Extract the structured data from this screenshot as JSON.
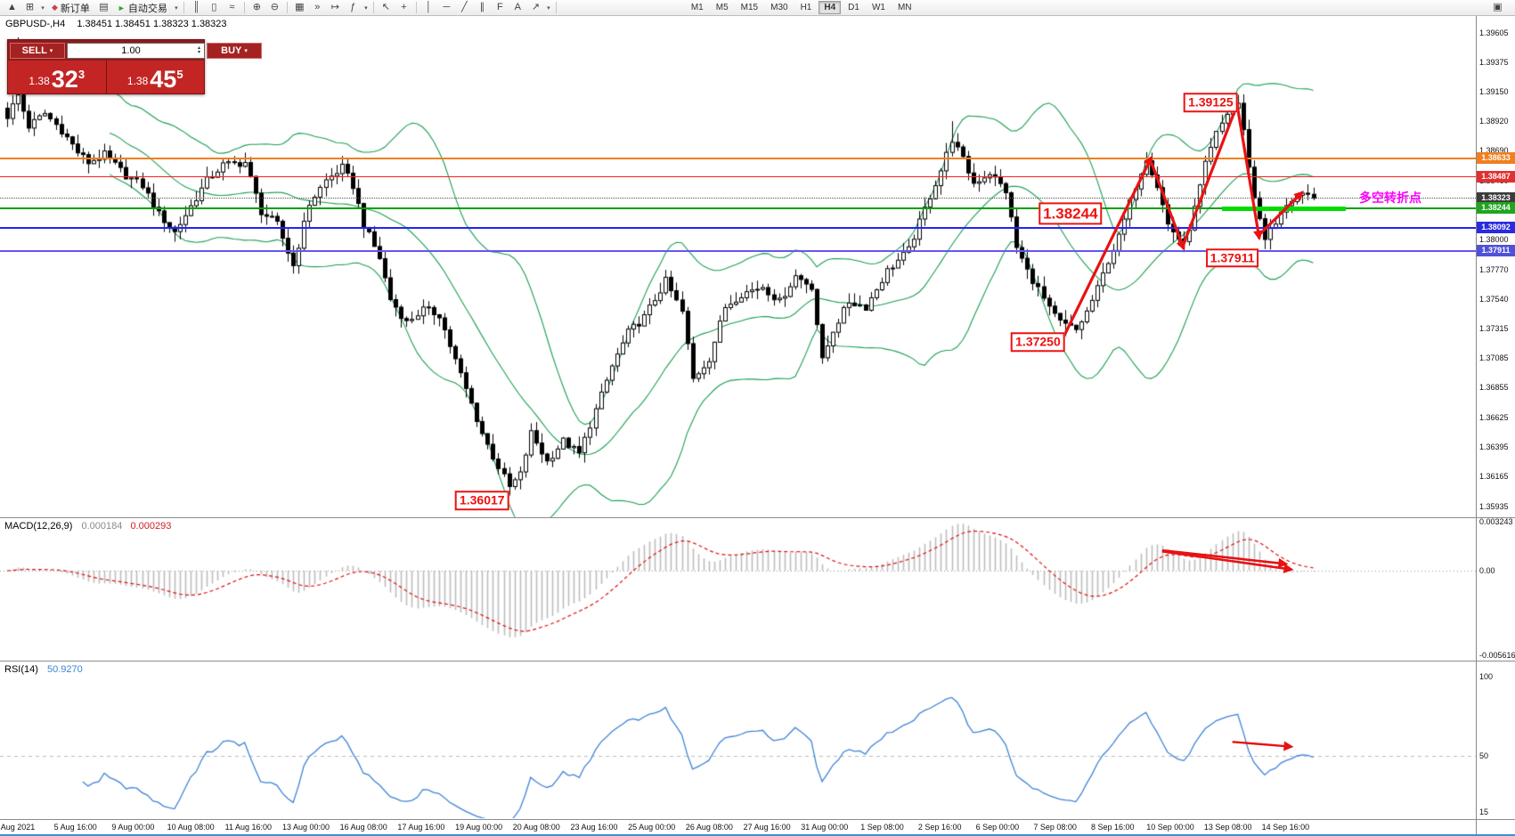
{
  "toolbar": {
    "items": [
      {
        "type": "icon",
        "name": "chart-menu-icon",
        "glyph": "▲"
      },
      {
        "type": "icon",
        "name": "new-chart-icon",
        "glyph": "⊞"
      },
      {
        "type": "caret",
        "name": "new-chart-caret-icon",
        "glyph": "▾"
      },
      {
        "type": "button",
        "name": "new-order-button",
        "icon_glyph": "◆",
        "icon_color": "#cc4444",
        "label": "新订单"
      },
      {
        "type": "icon",
        "name": "market-watch-icon",
        "glyph": "▤"
      },
      {
        "type": "button",
        "name": "auto-trading-button",
        "icon_glyph": "►",
        "icon_color": "#2da52d",
        "label": "自动交易"
      },
      {
        "type": "caret",
        "name": "auto-trading-caret-icon",
        "glyph": "▾"
      },
      {
        "type": "sep"
      },
      {
        "type": "icon",
        "name": "bar-chart-icon",
        "glyph": "║"
      },
      {
        "type": "icon",
        "name": "candle-chart-icon",
        "glyph": "▯"
      },
      {
        "type": "icon",
        "name": "line-chart-icon",
        "glyph": "≈"
      },
      {
        "type": "sep"
      },
      {
        "type": "icon",
        "name": "zoom-in-icon",
        "glyph": "⊕"
      },
      {
        "type": "icon",
        "name": "zoom-out-icon",
        "glyph": "⊖"
      },
      {
        "type": "sep"
      },
      {
        "type": "icon",
        "name": "tile-windows-icon",
        "glyph": "▦"
      },
      {
        "type": "icon",
        "name": "auto-scroll-icon",
        "glyph": "»"
      },
      {
        "type": "icon",
        "name": "chart-shift-icon",
        "glyph": "↦"
      },
      {
        "type": "icon",
        "name": "indicators-icon",
        "glyph": "ƒ"
      },
      {
        "type": "caret",
        "name": "indicators-caret-icon",
        "glyph": "▾"
      },
      {
        "type": "sep"
      },
      {
        "type": "icon",
        "name": "cursor-icon",
        "glyph": "↖"
      },
      {
        "type": "icon",
        "name": "crosshair-icon",
        "glyph": "+"
      },
      {
        "type": "sep"
      },
      {
        "type": "icon",
        "name": "vertical-line-icon",
        "glyph": "│"
      },
      {
        "type": "icon",
        "name": "horizontal-line-icon",
        "glyph": "─"
      },
      {
        "type": "icon",
        "name": "trendline-icon",
        "glyph": "╱"
      },
      {
        "type": "icon",
        "name": "channel-icon",
        "glyph": "∥"
      },
      {
        "type": "icon",
        "name": "fibonacci-icon",
        "glyph": "F"
      },
      {
        "type": "icon",
        "name": "text-tool-icon",
        "glyph": "A"
      },
      {
        "type": "icon",
        "name": "arrow-tool-icon",
        "glyph": "↗"
      },
      {
        "type": "caret",
        "name": "arrow-tool-caret-icon",
        "glyph": "▾"
      },
      {
        "type": "sep"
      }
    ],
    "timeframes": [
      "M1",
      "M5",
      "M15",
      "M30",
      "H1",
      "H4",
      "D1",
      "W1",
      "MN"
    ],
    "active_timeframe": "H4",
    "right_icon_glyph": "▣"
  },
  "chart_header": {
    "symbol_period": "GBPUSD-,H4",
    "ohlc": "1.38451 1.38451 1.38323 1.38323"
  },
  "trade_panel": {
    "sell_label": "SELL",
    "buy_label": "BUY",
    "volume": "1.00",
    "caret": "▾",
    "spin_up": "▴",
    "spin_down": "▾",
    "sell_price": {
      "prefix": "1.38",
      "big": "32",
      "sup": "3"
    },
    "buy_price": {
      "prefix": "1.38",
      "big": "45",
      "sup": "5"
    }
  },
  "indicator_labels": {
    "macd_name": "MACD(12,26,9)",
    "macd_value_main": "0.000184",
    "macd_value_signal": "0.000293",
    "rsi_name": "RSI(14)",
    "rsi_value": "50.9270"
  },
  "price_axis": {
    "ticks": [
      "1.39605",
      "1.39375",
      "1.39150",
      "1.38920",
      "1.38690",
      "1.38460",
      "1.38230",
      "1.38000",
      "1.37770",
      "1.37540",
      "1.37315",
      "1.37085",
      "1.36855",
      "1.36625",
      "1.36395",
      "1.36165",
      "1.35935"
    ],
    "tags": [
      {
        "value": "1.38633",
        "color": "#f07f1f",
        "price": 1.38633
      },
      {
        "value": "1.38487",
        "color": "#e03030",
        "price": 1.38487
      },
      {
        "value": "1.38323",
        "color": "#3c3c3c",
        "price": 1.38323
      },
      {
        "value": "1.38244",
        "color": "#1fa51f",
        "price": 1.38244
      },
      {
        "value": "1.38092",
        "color": "#2a2ae0",
        "price": 1.38092
      },
      {
        "value": "1.37911",
        "color": "#5050d8",
        "price": 1.37911
      }
    ]
  },
  "macd_axis": [
    {
      "text": "0.003243",
      "value": 0.003243
    },
    {
      "text": "0.00",
      "value": 0
    },
    {
      "text": "-0.005616",
      "value": -0.005616
    }
  ],
  "rsi_axis": [
    {
      "text": "100",
      "value": 100
    },
    {
      "text": "50",
      "value": 50
    },
    {
      "text": "15",
      "value": 15
    }
  ],
  "time_axis": [
    "Aug 2021",
    "5 Aug 16:00",
    "9 Aug 00:00",
    "10 Aug 08:00",
    "11 Aug 16:00",
    "13 Aug 00:00",
    "16 Aug 08:00",
    "17 Aug 16:00",
    "19 Aug 00:00",
    "20 Aug 08:00",
    "23 Aug 16:00",
    "25 Aug 00:00",
    "26 Aug 08:00",
    "27 Aug 16:00",
    "31 Aug 00:00",
    "1 Sep 08:00",
    "2 Sep 16:00",
    "6 Sep 00:00",
    "7 Sep 08:00",
    "8 Sep 16:00",
    "10 Sep 00:00",
    "13 Sep 08:00",
    "14 Sep 16:00"
  ],
  "annotations": {
    "boxes": [
      {
        "text": "1.39125",
        "bar": 223,
        "price": 1.39065,
        "size": "md"
      },
      {
        "text": "1.38244",
        "bar": 197,
        "price": 1.38205,
        "size": "lg"
      },
      {
        "text": "1.37911",
        "bar": 227,
        "price": 1.37858,
        "size": "md"
      },
      {
        "text": "1.37250",
        "bar": 191,
        "price": 1.37208,
        "size": "md"
      },
      {
        "text": "1.36017",
        "bar": 88,
        "price": 1.35978,
        "size": "md"
      }
    ],
    "pivot_text": {
      "text": "多空转折点",
      "color": "#ff00ff"
    },
    "pivot_line": {
      "price": 1.38244,
      "bar_start": 225,
      "bar_end": 248,
      "color": "#00dd00"
    },
    "arrow_color": "#e81212",
    "arrows_main": [
      {
        "from": [
          196,
          1.3727
        ],
        "to": [
          212,
          1.3864
        ]
      },
      {
        "from": [
          212,
          1.386
        ],
        "to": [
          218,
          1.3793
        ]
      },
      {
        "from": [
          218,
          1.3797
        ],
        "to": [
          228,
          1.3906
        ]
      },
      {
        "from": [
          228,
          1.3902
        ],
        "to": [
          232,
          1.3801
        ]
      },
      {
        "from": [
          232,
          1.3804
        ],
        "to": [
          240,
          1.3837
        ]
      }
    ],
    "arrows_macd": [
      {
        "from": [
          214,
          0.00135
        ],
        "to": [
          237,
          0.00045
        ]
      },
      {
        "from": [
          214,
          0.00128
        ],
        "to": [
          238,
          8e-05
        ]
      }
    ],
    "arrows_rsi": [
      {
        "from": [
          227,
          59
        ],
        "to": [
          238,
          56
        ]
      }
    ]
  },
  "chart_data": {
    "type": "candlestick",
    "symbol": "GBPUSD-",
    "timeframe": "H4",
    "bars": 243,
    "last_price": 1.38323,
    "ylim": [
      1.35849,
      1.39736
    ],
    "key_levels": [
      1.39125,
      1.38633,
      1.38487,
      1.38323,
      1.38244,
      1.38092,
      1.37911,
      1.3725,
      1.36017
    ],
    "indicators": {
      "bollinger": {
        "period": 20,
        "deviation": 2,
        "color": "#1a9e4f"
      },
      "macd": {
        "params": "12,26,9",
        "value_main": 0.000184,
        "value_signal": 0.000293,
        "axis": [
          0.003243,
          0,
          -0.005616
        ]
      },
      "rsi": {
        "period": 14,
        "value": 50.927,
        "axis": [
          100,
          50,
          15
        ]
      }
    },
    "hlines": [
      {
        "price": 1.38633,
        "color": "#f07f1f",
        "width": 2,
        "style": "solid"
      },
      {
        "price": 1.38487,
        "color": "#ff2020",
        "width": 1,
        "style": "solid"
      },
      {
        "price": 1.38323,
        "color": "#555555",
        "width": 1,
        "style": "dotted"
      },
      {
        "price": 1.38244,
        "color": "#00a000",
        "width": 2,
        "style": "solid"
      },
      {
        "price": 1.38092,
        "color": "#2222ff",
        "width": 2,
        "style": "solid"
      },
      {
        "price": 1.37911,
        "color": "#6655ee",
        "width": 2,
        "style": "solid"
      }
    ],
    "close_keyframes": [
      [
        0,
        1.3896
      ],
      [
        2,
        1.3912
      ],
      [
        4,
        1.3888
      ],
      [
        7,
        1.3898
      ],
      [
        10,
        1.3885
      ],
      [
        13,
        1.3868
      ],
      [
        15,
        1.386
      ],
      [
        18,
        1.3866
      ],
      [
        22,
        1.385
      ],
      [
        25,
        1.3842
      ],
      [
        28,
        1.382
      ],
      [
        31,
        1.3806
      ],
      [
        34,
        1.3826
      ],
      [
        37,
        1.3846
      ],
      [
        40,
        1.3858
      ],
      [
        44,
        1.386
      ],
      [
        47,
        1.3822
      ],
      [
        50,
        1.3812
      ],
      [
        53,
        1.378
      ],
      [
        56,
        1.3828
      ],
      [
        59,
        1.3846
      ],
      [
        62,
        1.3856
      ],
      [
        64,
        1.3842
      ],
      [
        66,
        1.3812
      ],
      [
        69,
        1.3786
      ],
      [
        71,
        1.3754
      ],
      [
        74,
        1.3736
      ],
      [
        77,
        1.3746
      ],
      [
        80,
        1.3742
      ],
      [
        82,
        1.3718
      ],
      [
        85,
        1.3684
      ],
      [
        88,
        1.365
      ],
      [
        90,
        1.3632
      ],
      [
        93,
        1.3608
      ],
      [
        95,
        1.3618
      ],
      [
        97,
        1.365
      ],
      [
        100,
        1.3628
      ],
      [
        103,
        1.3644
      ],
      [
        106,
        1.3634
      ],
      [
        109,
        1.3668
      ],
      [
        112,
        1.3702
      ],
      [
        115,
        1.3728
      ],
      [
        118,
        1.374
      ],
      [
        122,
        1.3768
      ],
      [
        125,
        1.3744
      ],
      [
        127,
        1.3692
      ],
      [
        130,
        1.3708
      ],
      [
        133,
        1.3748
      ],
      [
        136,
        1.3758
      ],
      [
        140,
        1.3764
      ],
      [
        143,
        1.3752
      ],
      [
        146,
        1.3772
      ],
      [
        149,
        1.3764
      ],
      [
        151,
        1.3706
      ],
      [
        153,
        1.373
      ],
      [
        156,
        1.3752
      ],
      [
        159,
        1.3748
      ],
      [
        163,
        1.3776
      ],
      [
        167,
        1.3792
      ],
      [
        170,
        1.3824
      ],
      [
        173,
        1.3854
      ],
      [
        175,
        1.3878
      ],
      [
        177,
        1.3862
      ],
      [
        179,
        1.3844
      ],
      [
        182,
        1.3852
      ],
      [
        185,
        1.3838
      ],
      [
        187,
        1.3794
      ],
      [
        189,
        1.3776
      ],
      [
        191,
        1.3762
      ],
      [
        193,
        1.3746
      ],
      [
        195,
        1.3736
      ],
      [
        198,
        1.373
      ],
      [
        200,
        1.3744
      ],
      [
        202,
        1.3762
      ],
      [
        204,
        1.3784
      ],
      [
        206,
        1.3802
      ],
      [
        209,
        1.3842
      ],
      [
        211,
        1.3864
      ],
      [
        213,
        1.3842
      ],
      [
        215,
        1.3812
      ],
      [
        218,
        1.3796
      ],
      [
        220,
        1.3824
      ],
      [
        222,
        1.3858
      ],
      [
        224,
        1.3882
      ],
      [
        226,
        1.3898
      ],
      [
        228,
        1.3906
      ],
      [
        229,
        1.3884
      ],
      [
        231,
        1.3832
      ],
      [
        233,
        1.3802
      ],
      [
        235,
        1.3812
      ],
      [
        237,
        1.3828
      ],
      [
        239,
        1.3834
      ],
      [
        242,
        1.38323
      ]
    ],
    "forced_high": [
      [
        2,
        1.3957
      ],
      [
        175,
        1.3892
      ],
      [
        228,
        1.39125
      ]
    ],
    "forced_low": [
      [
        93,
        1.36017
      ],
      [
        196,
        1.37252
      ],
      [
        218,
        1.37905
      ]
    ]
  }
}
